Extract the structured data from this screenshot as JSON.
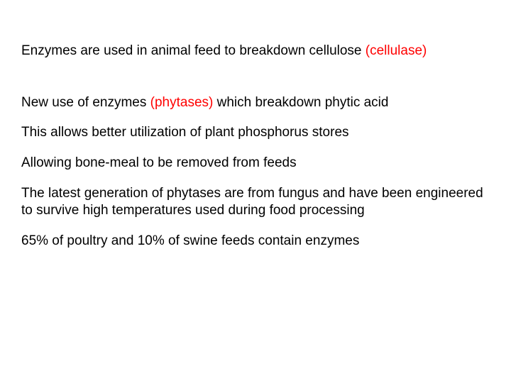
{
  "slide": {
    "text_color": "#000000",
    "highlight_color": "#ff0000",
    "background_color": "#ffffff",
    "font_size": 19,
    "paragraphs": {
      "p1_a": "Enzymes are used in animal feed to breakdown cellulose ",
      "p1_b": "(cellulase)",
      "p2_a": "New use of enzymes ",
      "p2_b": "(phytases)",
      "p2_c": " which breakdown phytic acid",
      "p3": "This allows better utilization of plant phosphorus stores",
      "p4": "Allowing bone-meal to be removed from feeds",
      "p5": "The latest generation of phytases are from fungus and have been engineered to survive high temperatures used during food processing",
      "p6": "65% of poultry and 10% of swine feeds contain enzymes"
    }
  }
}
